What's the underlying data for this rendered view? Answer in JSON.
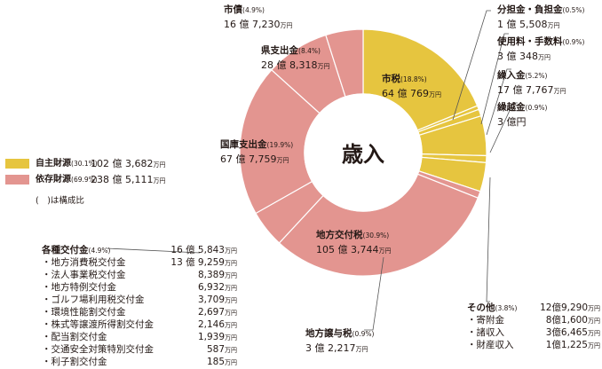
{
  "chart_data": {
    "type": "pie",
    "title": "歳入",
    "slices": [
      {
        "name": "市税",
        "percent": "18.8%",
        "amount": "64 億 769",
        "value": 18.8,
        "group": "自主財源"
      },
      {
        "name": "分担金・負担金",
        "percent": "0.5%",
        "amount": "1 億 5,508",
        "value": 0.5,
        "group": "自主財源"
      },
      {
        "name": "使用料・手数料",
        "percent": "0.9%",
        "amount": "3 億 348",
        "value": 0.9,
        "group": "自主財源"
      },
      {
        "name": "繰入金",
        "percent": "5.2%",
        "amount": "17 億 7,767",
        "value": 5.2,
        "group": "自主財源"
      },
      {
        "name": "繰越金",
        "percent": "0.9%",
        "amount": "3 億円",
        "value": 0.9,
        "group": "自主財源"
      },
      {
        "name": "その他",
        "percent": "3.8%",
        "amount": "12億9,290",
        "value": 3.8,
        "group": "自主財源"
      },
      {
        "name": "地方譲与税",
        "percent": "0.9%",
        "amount": "3 億 2,217",
        "value": 0.9,
        "group": "依存財源"
      },
      {
        "name": "地方交付税",
        "percent": "30.9%",
        "amount": "105 億 3,744",
        "value": 30.9,
        "group": "依存財源"
      },
      {
        "name": "各種交付金",
        "percent": "4.9%",
        "amount": "16 億 5,843",
        "value": 4.9,
        "group": "依存財源"
      },
      {
        "name": "国庫支出金",
        "percent": "19.9%",
        "amount": "67 億 7,759",
        "value": 19.9,
        "group": "依存財源"
      },
      {
        "name": "県支出金",
        "percent": "8.4%",
        "amount": "28 億 8,318",
        "value": 8.4,
        "group": "依存財源"
      },
      {
        "name": "市債",
        "percent": "4.9%",
        "amount": "16 億 7,230",
        "value": 4.9,
        "group": "依存財源"
      }
    ],
    "groups": [
      {
        "name": "自主財源",
        "percent": "30.1%",
        "amount": "102 億 3,682",
        "color": "#e6c53f"
      },
      {
        "name": "依存財源",
        "percent": "69.9%",
        "amount": "238 億 5,111",
        "color": "#e39590"
      }
    ],
    "ring_labels": [
      "自主財源",
      "依存財源"
    ],
    "unit": "万円",
    "note": "(　)は構成比",
    "sub_items": {
      "kakushu": [
        {
          "name": "・地方消費税交付金",
          "amount": "13 億 9,259"
        },
        {
          "name": "・法人事業税交付金",
          "amount": "8,389"
        },
        {
          "name": "・地方特例交付金",
          "amount": "6,932"
        },
        {
          "name": "・ゴルフ場利用税交付金",
          "amount": "3,709"
        },
        {
          "name": "・環境性能割交付金",
          "amount": "2,697"
        },
        {
          "name": "・株式等譲渡所得割交付金",
          "amount": "2,146"
        },
        {
          "name": "・配当割交付金",
          "amount": "1,939"
        },
        {
          "name": "・交通安全対策特別交付金",
          "amount": "587"
        },
        {
          "name": "・利子割交付金",
          "amount": "185"
        }
      ],
      "sonota": [
        {
          "name": "・寄附金",
          "amount": "8億1,600"
        },
        {
          "name": "・諸収入",
          "amount": "3億6,465"
        },
        {
          "name": "・財産収入",
          "amount": "1億1,225"
        }
      ]
    }
  }
}
